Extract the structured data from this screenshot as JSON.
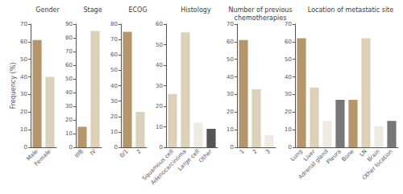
{
  "chart_data": [
    {
      "type": "bar",
      "title": "Gender",
      "ylabel": "Frequency (%)",
      "categories": [
        "Male",
        "Female"
      ],
      "values": [
        61,
        40
      ],
      "colors": [
        "#b5956a",
        "#ddd0b8"
      ],
      "ylim": [
        0,
        70
      ],
      "yticks": [
        0,
        10,
        20,
        30,
        40,
        50,
        60,
        70
      ],
      "grid": false
    },
    {
      "type": "bar",
      "title": "Stage",
      "categories": [
        "IIIB",
        "IV"
      ],
      "values": [
        15,
        85
      ],
      "colors": [
        "#b5956a",
        "#ddd0b8"
      ],
      "ylim": [
        0,
        90
      ],
      "yticks": [
        0,
        10,
        20,
        30,
        40,
        50,
        60,
        70,
        80,
        90
      ],
      "grid": false
    },
    {
      "type": "bar",
      "title": "ECOG",
      "categories": [
        "0/1",
        "2"
      ],
      "values": [
        75,
        23
      ],
      "colors": [
        "#b5956a",
        "#ddd0b8"
      ],
      "ylim": [
        0,
        80
      ],
      "yticks": [
        0,
        10,
        20,
        30,
        40,
        50,
        60,
        70,
        80
      ],
      "grid": false
    },
    {
      "type": "bar",
      "title": "Histology",
      "categories": [
        "Squamous cell",
        "Adenocarcinoma",
        "Large cell",
        "Other"
      ],
      "values": [
        26,
        56,
        12,
        9
      ],
      "colors": [
        "#ddd0b8",
        "#ddd0b8",
        "#f0ebe0",
        "#555555"
      ],
      "ylim": [
        0,
        60
      ],
      "yticks": [
        0,
        10,
        20,
        30,
        40,
        50,
        60
      ],
      "grid": false
    },
    {
      "type": "bar",
      "title": "Number of previous\nchemotherapies",
      "categories": [
        "1",
        "2",
        "3"
      ],
      "values": [
        61,
        33,
        7
      ],
      "colors": [
        "#b5956a",
        "#ddd0b8",
        "#f0ebe0"
      ],
      "ylim": [
        0,
        70
      ],
      "yticks": [
        0,
        10,
        20,
        30,
        40,
        50,
        60,
        70
      ],
      "grid": false
    },
    {
      "type": "bar",
      "title": "Location of metastatic site",
      "categories": [
        "Lung",
        "Liver",
        "Adrenal gland",
        "Pleura",
        "Bone",
        "LN",
        "Brain",
        "Other location"
      ],
      "values": [
        62,
        34,
        15,
        27,
        27,
        62,
        12,
        15
      ],
      "colors": [
        "#b5956a",
        "#ddd0b8",
        "#f0ebe0",
        "#777777",
        "#b5956a",
        "#ddd0b8",
        "#f0ebe0",
        "#777777"
      ],
      "ylim": [
        0,
        70
      ],
      "yticks": [
        0,
        10,
        20,
        30,
        40,
        50,
        60,
        70
      ],
      "grid": false
    }
  ]
}
